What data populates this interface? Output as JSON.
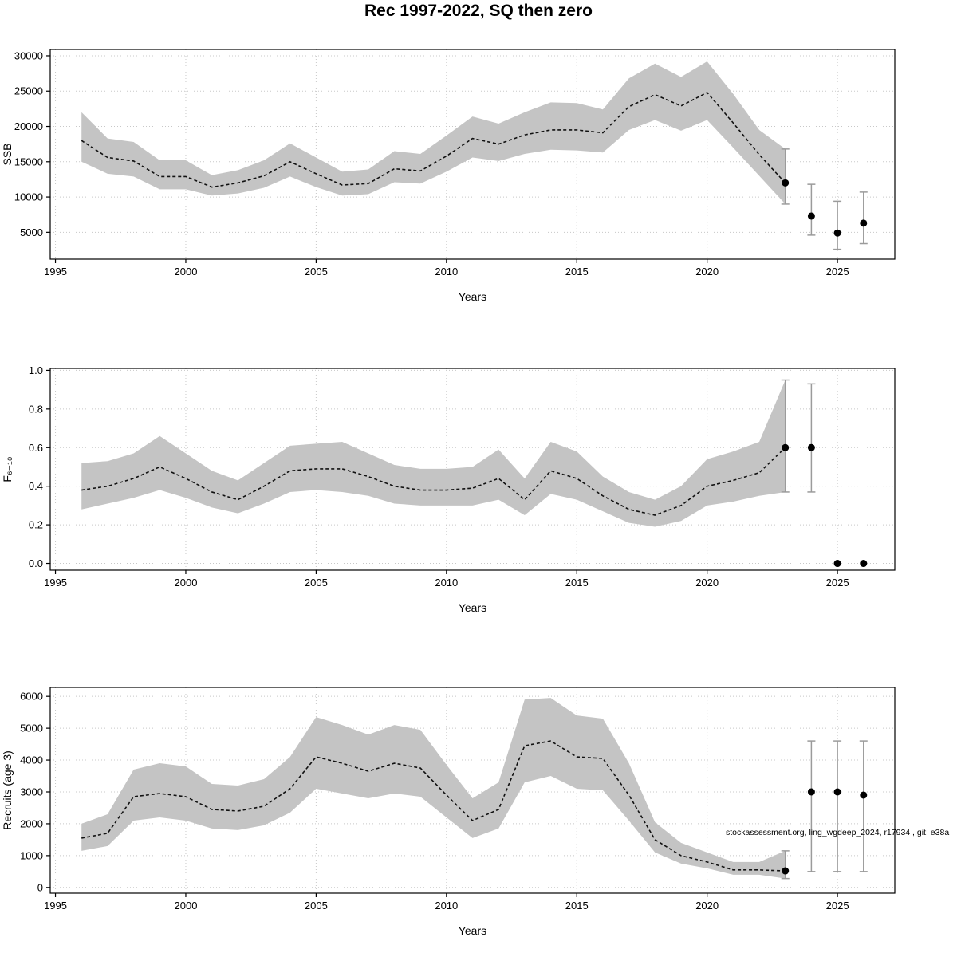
{
  "title": "Rec 1997-2022, SQ then zero",
  "chart_data": [
    {
      "type": "area",
      "name": "ssb",
      "xlabel": "Years",
      "ylabel": "SSB",
      "xlim": [
        1994.8,
        2027.2
      ],
      "ylim": [
        1200,
        30900
      ],
      "xticks": [
        1995,
        2000,
        2005,
        2010,
        2015,
        2020,
        2025
      ],
      "xtick_labels": [
        "1995",
        "2000",
        "2005",
        "2010",
        "2015",
        "2020",
        "2025"
      ],
      "yticks": [
        5000,
        10000,
        15000,
        20000,
        25000,
        30000
      ],
      "ytick_labels": [
        "5000",
        "10000",
        "15000",
        "20000",
        "25000",
        "30000"
      ],
      "years": [
        1996,
        1997,
        1998,
        1999,
        2000,
        2001,
        2002,
        2003,
        2004,
        2005,
        2006,
        2007,
        2008,
        2009,
        2010,
        2011,
        2012,
        2013,
        2014,
        2015,
        2016,
        2017,
        2018,
        2019,
        2020,
        2021,
        2022,
        2023
      ],
      "median": [
        18000,
        15600,
        15100,
        12900,
        12900,
        11400,
        12000,
        13000,
        15000,
        13300,
        11700,
        11900,
        14000,
        13700,
        15800,
        18300,
        17500,
        18800,
        19500,
        19500,
        19100,
        22800,
        24500,
        22900,
        24800,
        20500,
        16000,
        12000
      ],
      "lo": [
        15000,
        13300,
        12900,
        11100,
        11100,
        10200,
        10500,
        11300,
        12900,
        11400,
        10200,
        10400,
        12100,
        11900,
        13600,
        15600,
        15100,
        16100,
        16700,
        16600,
        16300,
        19500,
        20900,
        19400,
        20900,
        17000,
        13000,
        9000
      ],
      "hi": [
        22000,
        18300,
        17800,
        15200,
        15200,
        13100,
        13800,
        15200,
        17600,
        15600,
        13600,
        13900,
        16500,
        16100,
        18700,
        21400,
        20400,
        22000,
        23400,
        23300,
        22400,
        26800,
        28900,
        27000,
        29200,
        24600,
        19500,
        16800
      ],
      "forecast_points": [
        {
          "x": 2023,
          "y": 12000,
          "lo": 9000,
          "hi": 16800
        },
        {
          "x": 2024,
          "y": 7300,
          "lo": 4600,
          "hi": 11800
        },
        {
          "x": 2025,
          "y": 4900,
          "lo": 2600,
          "hi": 9400
        },
        {
          "x": 2026,
          "y": 6300,
          "lo": 3400,
          "hi": 10700
        }
      ]
    },
    {
      "type": "area",
      "name": "fishing-mortality",
      "xlabel": "Years",
      "ylabel": "F₆₋₁₀",
      "xlim": [
        1994.8,
        2027.2
      ],
      "ylim": [
        -0.035,
        1.01
      ],
      "xticks": [
        1995,
        2000,
        2005,
        2010,
        2015,
        2020,
        2025
      ],
      "xtick_labels": [
        "1995",
        "2000",
        "2005",
        "2010",
        "2015",
        "2020",
        "2025"
      ],
      "yticks": [
        0.0,
        0.2,
        0.4,
        0.6,
        0.8,
        1.0
      ],
      "ytick_labels": [
        "0.0",
        "0.2",
        "0.4",
        "0.6",
        "0.8",
        "1.0"
      ],
      "years": [
        1996,
        1997,
        1998,
        1999,
        2000,
        2001,
        2002,
        2003,
        2004,
        2005,
        2006,
        2007,
        2008,
        2009,
        2010,
        2011,
        2012,
        2013,
        2014,
        2015,
        2016,
        2017,
        2018,
        2019,
        2020,
        2021,
        2022,
        2023
      ],
      "median": [
        0.38,
        0.4,
        0.44,
        0.5,
        0.44,
        0.37,
        0.33,
        0.4,
        0.48,
        0.49,
        0.49,
        0.45,
        0.4,
        0.38,
        0.38,
        0.39,
        0.44,
        0.33,
        0.48,
        0.44,
        0.35,
        0.28,
        0.25,
        0.3,
        0.4,
        0.43,
        0.47,
        0.6
      ],
      "lo": [
        0.28,
        0.31,
        0.34,
        0.38,
        0.34,
        0.29,
        0.26,
        0.31,
        0.37,
        0.38,
        0.37,
        0.35,
        0.31,
        0.3,
        0.3,
        0.3,
        0.33,
        0.25,
        0.36,
        0.33,
        0.27,
        0.21,
        0.19,
        0.22,
        0.3,
        0.32,
        0.35,
        0.37
      ],
      "hi": [
        0.52,
        0.53,
        0.57,
        0.66,
        0.57,
        0.48,
        0.43,
        0.52,
        0.61,
        0.62,
        0.63,
        0.57,
        0.51,
        0.49,
        0.49,
        0.5,
        0.59,
        0.44,
        0.63,
        0.58,
        0.45,
        0.37,
        0.33,
        0.4,
        0.54,
        0.58,
        0.63,
        0.95
      ],
      "forecast_points": [
        {
          "x": 2023,
          "y": 0.6,
          "lo": 0.37,
          "hi": 0.95
        },
        {
          "x": 2024,
          "y": 0.6,
          "lo": 0.37,
          "hi": 0.93
        },
        {
          "x": 2025,
          "y": 0.0
        },
        {
          "x": 2026,
          "y": 0.0
        }
      ]
    },
    {
      "type": "area",
      "name": "recruits",
      "xlabel": "Years",
      "ylabel": "Recruits (age 3)",
      "xlim": [
        1994.8,
        2027.2
      ],
      "ylim": [
        -180,
        6280
      ],
      "xticks": [
        1995,
        2000,
        2005,
        2010,
        2015,
        2020,
        2025
      ],
      "xtick_labels": [
        "1995",
        "2000",
        "2005",
        "2010",
        "2015",
        "2020",
        "2025"
      ],
      "yticks": [
        0,
        1000,
        2000,
        3000,
        4000,
        5000,
        6000
      ],
      "ytick_labels": [
        "0",
        "1000",
        "2000",
        "3000",
        "4000",
        "5000",
        "6000"
      ],
      "years": [
        1996,
        1997,
        1998,
        1999,
        2000,
        2001,
        2002,
        2003,
        2004,
        2005,
        2006,
        2007,
        2008,
        2009,
        2010,
        2011,
        2012,
        2013,
        2014,
        2015,
        2016,
        2017,
        2018,
        2019,
        2020,
        2021,
        2022,
        2023
      ],
      "median": [
        1550,
        1700,
        2850,
        2950,
        2850,
        2450,
        2400,
        2550,
        3100,
        4100,
        3900,
        3650,
        3900,
        3750,
        2900,
        2100,
        2450,
        4450,
        4600,
        4100,
        4050,
        2900,
        1500,
        1000,
        800,
        550,
        550,
        520
      ],
      "lo": [
        1150,
        1300,
        2100,
        2200,
        2100,
        1850,
        1800,
        1950,
        2350,
        3100,
        2950,
        2800,
        2950,
        2850,
        2200,
        1550,
        1850,
        3300,
        3500,
        3100,
        3050,
        2100,
        1100,
        750,
        600,
        400,
        400,
        280
      ],
      "hi": [
        2000,
        2300,
        3700,
        3900,
        3800,
        3250,
        3200,
        3400,
        4100,
        5350,
        5100,
        4800,
        5100,
        4950,
        3850,
        2800,
        3300,
        5900,
        5950,
        5400,
        5300,
        3900,
        2050,
        1400,
        1100,
        800,
        800,
        1150
      ],
      "forecast_points": [
        {
          "x": 2023,
          "y": 520,
          "lo": 280,
          "hi": 1150
        },
        {
          "x": 2024,
          "y": 3000,
          "lo": 500,
          "hi": 4600
        },
        {
          "x": 2025,
          "y": 3000,
          "lo": 500,
          "hi": 4600
        },
        {
          "x": 2026,
          "y": 2900,
          "lo": 500,
          "hi": 4600
        }
      ],
      "annotation": {
        "text": "stockassessment.org, ling_wgdeep_2024, r17934 , git: e38a",
        "x": 2025,
        "y": 1650
      }
    }
  ],
  "colors": {
    "band": "#c4c4c4",
    "median_line": "#111111",
    "error_bar": "#9b9b9b",
    "grid": "#c8c8c8",
    "point": "#000000"
  }
}
